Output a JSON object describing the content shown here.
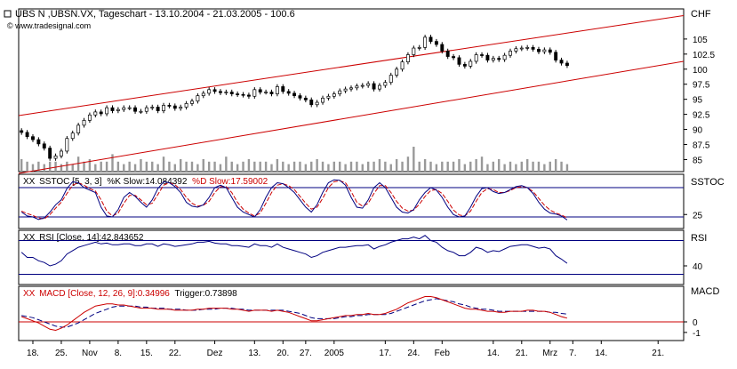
{
  "header": {
    "title": "UBS N ,UBSN.VX, Tageschart - 13.10.2004 - 21.03.2005 - 100.6",
    "source": "© www.tradesignal.com"
  },
  "chart_data": [
    {
      "panel": "price",
      "type": "candlestick",
      "currency_label": "CHF",
      "y_ticks": [
        85,
        87.5,
        90,
        92.5,
        95,
        97.5,
        100,
        102.5,
        105
      ],
      "ylim": [
        83,
        110
      ],
      "last_value": 100.6,
      "closes": [
        89.5,
        88.8,
        88.3,
        87.6,
        86.9,
        85.2,
        85.6,
        86.4,
        88.5,
        89.4,
        90.7,
        91.5,
        92.4,
        92.9,
        92.6,
        93.6,
        93.1,
        93.3,
        93.6,
        93.6,
        93.0,
        93.0,
        93.6,
        93.7,
        93.1,
        94.0,
        93.9,
        93.5,
        93.7,
        94.3,
        94.7,
        95.6,
        96.0,
        96.6,
        96.3,
        96.1,
        96.2,
        95.9,
        95.8,
        95.7,
        95.5,
        96.6,
        96.2,
        96.2,
        95.9,
        97.1,
        96.3,
        96.0,
        95.6,
        95.2,
        94.9,
        94.1,
        94.5,
        95.2,
        95.5,
        95.9,
        96.4,
        96.7,
        96.9,
        97.2,
        97.3,
        97.6,
        96.7,
        97.3,
        97.8,
        99.0,
        100.0,
        101.2,
        102.4,
        103.5,
        103.6,
        105.3,
        104.6,
        104.1,
        103.0,
        102.1,
        101.9,
        100.8,
        100.5,
        101.3,
        102.4,
        102.3,
        101.5,
        101.8,
        101.6,
        102.3,
        103.0,
        103.4,
        103.5,
        103.6,
        103.3,
        102.9,
        103.2,
        102.8,
        101.5,
        101.0,
        100.6
      ],
      "volume": [
        5,
        4,
        3,
        4,
        3,
        4,
        4,
        3,
        4,
        3,
        6,
        4,
        5,
        3,
        4,
        4,
        7,
        4,
        3,
        4,
        3,
        5,
        4,
        4,
        3,
        6,
        4,
        3,
        5,
        4,
        4,
        3,
        5,
        4,
        4,
        3,
        6,
        4,
        3,
        4,
        5,
        4,
        4,
        4,
        3,
        5,
        4,
        3,
        4,
        4,
        3,
        4,
        5,
        4,
        3,
        4,
        4,
        3,
        4,
        4,
        3,
        4,
        4,
        5,
        4,
        3,
        5,
        4,
        6,
        10,
        4,
        5,
        4,
        3,
        4,
        4,
        4,
        5,
        3,
        4,
        5,
        6,
        3,
        4,
        5,
        3,
        4,
        3,
        4,
        5,
        4,
        4,
        3,
        4,
        5,
        4,
        3
      ],
      "channel": {
        "upper": [
          92.3,
          108.9
        ],
        "lower": [
          82.7,
          101.3
        ]
      }
    },
    {
      "panel": "stochastic",
      "type": "line",
      "label": "SSTOC",
      "legend": {
        "prefix": "SSTOC [5, 3, 3]",
        "k": "%K Slow:14.084392",
        "d": "%D Slow:17.59002"
      },
      "y_ticks": [
        25
      ],
      "ylim": [
        0,
        100
      ],
      "bands": [
        80,
        20
      ],
      "k_slow": [
        30,
        22,
        20,
        15,
        18,
        30,
        45,
        55,
        78,
        92,
        90,
        80,
        75,
        70,
        40,
        22,
        20,
        35,
        60,
        70,
        62,
        50,
        40,
        55,
        78,
        92,
        90,
        82,
        70,
        50,
        42,
        40,
        45,
        60,
        80,
        85,
        80,
        60,
        40,
        30,
        25,
        20,
        35,
        60,
        80,
        90,
        88,
        80,
        70,
        55,
        40,
        30,
        45,
        70,
        90,
        96,
        95,
        85,
        60,
        40,
        38,
        55,
        80,
        90,
        80,
        60,
        40,
        30,
        28,
        35,
        55,
        70,
        80,
        75,
        60,
        40,
        25,
        20,
        22,
        40,
        62,
        78,
        80,
        72,
        68,
        70,
        76,
        82,
        84,
        80,
        68,
        50,
        36,
        28,
        26,
        22,
        14
      ],
      "d_slow": [
        32,
        27,
        23,
        18,
        16,
        25,
        38,
        50,
        68,
        85,
        90,
        85,
        78,
        73,
        55,
        32,
        22,
        28,
        48,
        64,
        64,
        55,
        45,
        48,
        66,
        85,
        90,
        86,
        76,
        60,
        48,
        42,
        44,
        52,
        70,
        82,
        82,
        70,
        50,
        36,
        28,
        22,
        28,
        48,
        70,
        85,
        88,
        84,
        76,
        62,
        48,
        36,
        40,
        58,
        80,
        92,
        94,
        90,
        72,
        50,
        42,
        48,
        68,
        84,
        84,
        70,
        52,
        38,
        32,
        34,
        46,
        62,
        74,
        76,
        68,
        52,
        34,
        24,
        22,
        32,
        52,
        70,
        78,
        76,
        70,
        70,
        74,
        80,
        82,
        80,
        72,
        58,
        44,
        34,
        28,
        24,
        18
      ]
    },
    {
      "panel": "rsi",
      "type": "line",
      "label": "RSI",
      "legend": "RSI [Close, 14]:42.843652",
      "y_ticks": [
        40
      ],
      "ylim": [
        20,
        80
      ],
      "bands": [
        70,
        30
      ],
      "values": [
        56,
        50,
        50,
        46,
        44,
        40,
        42,
        46,
        54,
        58,
        62,
        64,
        66,
        68,
        66,
        67,
        65,
        65,
        66,
        66,
        64,
        64,
        66,
        66,
        63,
        66,
        65,
        63,
        64,
        65,
        66,
        68,
        68,
        69,
        67,
        66,
        66,
        64,
        64,
        63,
        62,
        66,
        64,
        64,
        62,
        66,
        62,
        60,
        58,
        56,
        54,
        50,
        52,
        56,
        58,
        60,
        62,
        62,
        63,
        64,
        64,
        65,
        60,
        63,
        65,
        68,
        70,
        72,
        72,
        74,
        72,
        76,
        70,
        68,
        62,
        58,
        56,
        52,
        52,
        56,
        62,
        60,
        56,
        58,
        57,
        60,
        63,
        64,
        65,
        65,
        63,
        61,
        62,
        60,
        52,
        48,
        43
      ]
    },
    {
      "panel": "macd",
      "type": "line",
      "label": "MACD",
      "legend": {
        "prefix": "MACD [Close, 12, 26, 9]:0.34996",
        "trigger": "Trigger:0.73898"
      },
      "y_ticks": [
        0,
        -1
      ],
      "ylim": [
        -1.6,
        3.2
      ],
      "macd": [
        0.5,
        0.3,
        0.1,
        -0.1,
        -0.4,
        -0.7,
        -0.8,
        -0.6,
        -0.3,
        0.1,
        0.5,
        0.9,
        1.2,
        1.5,
        1.6,
        1.7,
        1.7,
        1.6,
        1.6,
        1.5,
        1.4,
        1.3,
        1.3,
        1.3,
        1.2,
        1.2,
        1.2,
        1.1,
        1.1,
        1.1,
        1.1,
        1.2,
        1.2,
        1.3,
        1.3,
        1.3,
        1.3,
        1.2,
        1.2,
        1.1,
        1.0,
        1.1,
        1.1,
        1.1,
        1.0,
        1.1,
        1.0,
        0.9,
        0.7,
        0.5,
        0.3,
        0.1,
        0.1,
        0.2,
        0.3,
        0.4,
        0.5,
        0.6,
        0.6,
        0.7,
        0.7,
        0.8,
        0.7,
        0.7,
        0.8,
        1.0,
        1.2,
        1.5,
        1.8,
        2.0,
        2.2,
        2.4,
        2.4,
        2.3,
        2.1,
        1.9,
        1.7,
        1.5,
        1.3,
        1.2,
        1.2,
        1.1,
        1.0,
        1.0,
        0.9,
        0.9,
        1.0,
        1.0,
        1.0,
        1.1,
        1.1,
        1.0,
        1.0,
        0.9,
        0.7,
        0.5,
        0.35
      ],
      "trigger": [
        0.6,
        0.5,
        0.4,
        0.2,
        0.0,
        -0.2,
        -0.4,
        -0.5,
        -0.5,
        -0.3,
        -0.1,
        0.2,
        0.5,
        0.8,
        1.0,
        1.2,
        1.4,
        1.5,
        1.5,
        1.5,
        1.5,
        1.4,
        1.4,
        1.3,
        1.3,
        1.3,
        1.2,
        1.2,
        1.2,
        1.1,
        1.1,
        1.1,
        1.2,
        1.2,
        1.2,
        1.3,
        1.3,
        1.3,
        1.2,
        1.2,
        1.1,
        1.1,
        1.1,
        1.1,
        1.1,
        1.1,
        1.1,
        1.0,
        0.9,
        0.8,
        0.6,
        0.4,
        0.3,
        0.3,
        0.3,
        0.3,
        0.4,
        0.5,
        0.5,
        0.6,
        0.6,
        0.7,
        0.7,
        0.7,
        0.7,
        0.8,
        1.0,
        1.2,
        1.4,
        1.6,
        1.8,
        2.0,
        2.1,
        2.2,
        2.1,
        2.0,
        1.9,
        1.7,
        1.6,
        1.4,
        1.3,
        1.2,
        1.2,
        1.1,
        1.0,
        1.0,
        1.0,
        1.0,
        1.0,
        1.0,
        1.0,
        1.0,
        1.0,
        0.9,
        0.9,
        0.8,
        0.74
      ]
    }
  ],
  "x_axis": {
    "ticks": [
      {
        "label": "18.",
        "idx": 2
      },
      {
        "label": "25.",
        "idx": 7
      },
      {
        "label": "Nov",
        "idx": 12
      },
      {
        "label": "8.",
        "idx": 17
      },
      {
        "label": "15.",
        "idx": 22
      },
      {
        "label": "22.",
        "idx": 27
      },
      {
        "label": "Dez",
        "idx": 34
      },
      {
        "label": "13.",
        "idx": 41
      },
      {
        "label": "20.",
        "idx": 46
      },
      {
        "label": "27.",
        "idx": 50
      },
      {
        "label": "2005",
        "idx": 55
      },
      {
        "label": "17.",
        "idx": 64
      },
      {
        "label": "24.",
        "idx": 69
      },
      {
        "label": "Feb",
        "idx": 74
      },
      {
        "label": "14.",
        "idx": 83
      },
      {
        "label": "21.",
        "idx": 88
      },
      {
        "label": "Mrz",
        "idx": 93
      },
      {
        "label": "7.",
        "idx": 97
      },
      {
        "label": "14.",
        "idx": 102
      },
      {
        "label": "21.",
        "idx": 112
      }
    ],
    "total_slots": 117
  },
  "colors": {
    "frame": "#000000",
    "channel": "#cc0000",
    "band": "#000080",
    "k_line": "#000080",
    "d_line": "#cc0000",
    "rsi_line": "#000080",
    "macd_line": "#cc0000",
    "trigger_line": "#000080",
    "volume": "#999999",
    "candle_up": "#ffffff",
    "candle_down": "#000000",
    "red_text": "#cc0000"
  }
}
